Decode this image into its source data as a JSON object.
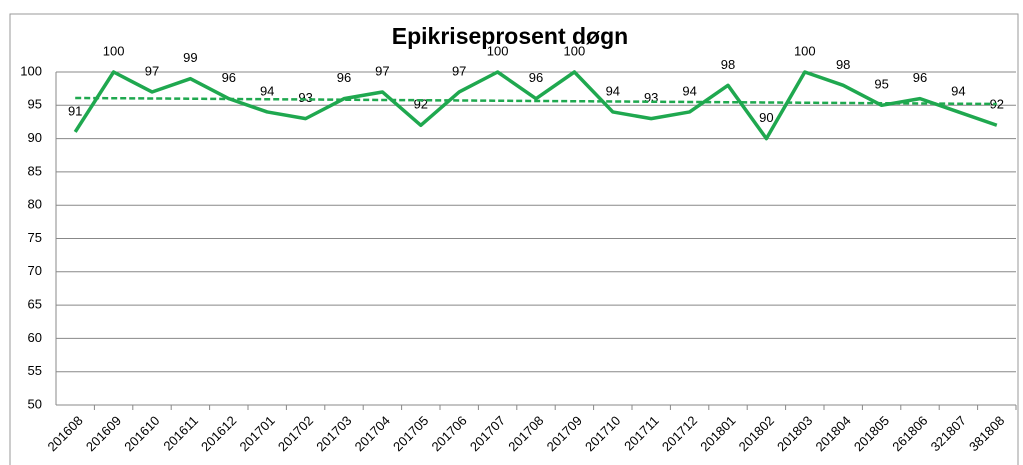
{
  "chart_data": {
    "type": "line",
    "title": "Epikriseprosent døgn",
    "categories": [
      "201608",
      "201609",
      "201610",
      "201611",
      "201612",
      "201701",
      "201702",
      "201703",
      "201704",
      "201705",
      "201706",
      "201707",
      "201708",
      "201709",
      "201710",
      "201711",
      "201712",
      "201801",
      "201802",
      "201803",
      "201804",
      "201805",
      "261806",
      "321807",
      "381808"
    ],
    "series": [
      {
        "name": "Epikriseprosent",
        "color": "#1fa84f",
        "values": [
          91,
          100,
          97,
          99,
          96,
          94,
          93,
          96,
          97,
          92,
          97,
          100,
          96,
          100,
          94,
          93,
          94,
          98,
          90,
          100,
          98,
          95,
          96,
          94,
          92
        ]
      }
    ],
    "trend": {
      "color": "#1fa84f",
      "values": [
        96.1,
        95.2
      ]
    },
    "ylim": [
      50,
      100
    ],
    "yticks": [
      50,
      55,
      60,
      65,
      70,
      75,
      80,
      85,
      90,
      95,
      100
    ],
    "grid": true
  }
}
